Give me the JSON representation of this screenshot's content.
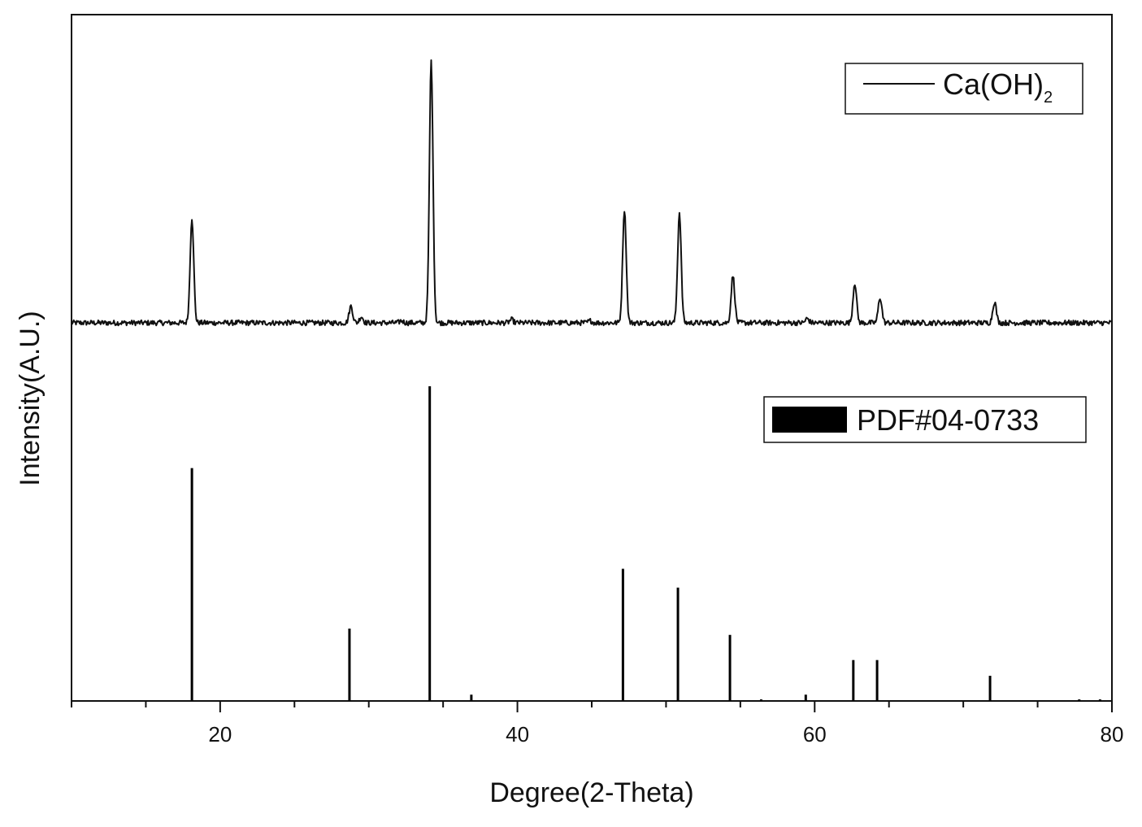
{
  "chart_data": {
    "type": "line",
    "xlabel": "Degree(2-Theta)",
    "ylabel": "Intensity(A.U.)",
    "xlim": [
      10,
      80
    ],
    "xticks": [
      20,
      40,
      60,
      80
    ],
    "xtick_labels": [
      "20",
      "40",
      "60",
      "80"
    ],
    "yticks_shown": false,
    "grid": false,
    "legend_placement": "top-right of each panel",
    "series": [
      {
        "name": "Ca(OH)",
        "name_subscript": "2",
        "style": "line",
        "color": "#111111",
        "baseline": 0.05,
        "peaks": [
          {
            "x": 18.1,
            "y": 1.0
          },
          {
            "x": 28.8,
            "y": 0.16
          },
          {
            "x": 29.5,
            "y": 0.06
          },
          {
            "x": 32.2,
            "y": 0.02
          },
          {
            "x": 34.2,
            "y": 2.5
          },
          {
            "x": 39.6,
            "y": 0.03
          },
          {
            "x": 44.9,
            "y": 0.02
          },
          {
            "x": 47.2,
            "y": 1.08
          },
          {
            "x": 50.9,
            "y": 1.05
          },
          {
            "x": 54.5,
            "y": 0.45
          },
          {
            "x": 59.5,
            "y": 0.04
          },
          {
            "x": 62.7,
            "y": 0.38
          },
          {
            "x": 64.4,
            "y": 0.24
          },
          {
            "x": 72.1,
            "y": 0.2
          }
        ]
      },
      {
        "name": "PDF#04-0733",
        "style": "stick",
        "color": "#000000",
        "values": [
          {
            "x": 18.1,
            "y": 74
          },
          {
            "x": 28.7,
            "y": 23
          },
          {
            "x": 34.1,
            "y": 100
          },
          {
            "x": 36.9,
            "y": 2
          },
          {
            "x": 47.1,
            "y": 42
          },
          {
            "x": 50.8,
            "y": 36
          },
          {
            "x": 54.3,
            "y": 21
          },
          {
            "x": 56.4,
            "y": 0.5
          },
          {
            "x": 59.4,
            "y": 2
          },
          {
            "x": 62.6,
            "y": 13
          },
          {
            "x": 64.2,
            "y": 13
          },
          {
            "x": 71.8,
            "y": 8
          },
          {
            "x": 77.8,
            "y": 0.5
          },
          {
            "x": 79.2,
            "y": 0.5
          }
        ]
      }
    ]
  }
}
